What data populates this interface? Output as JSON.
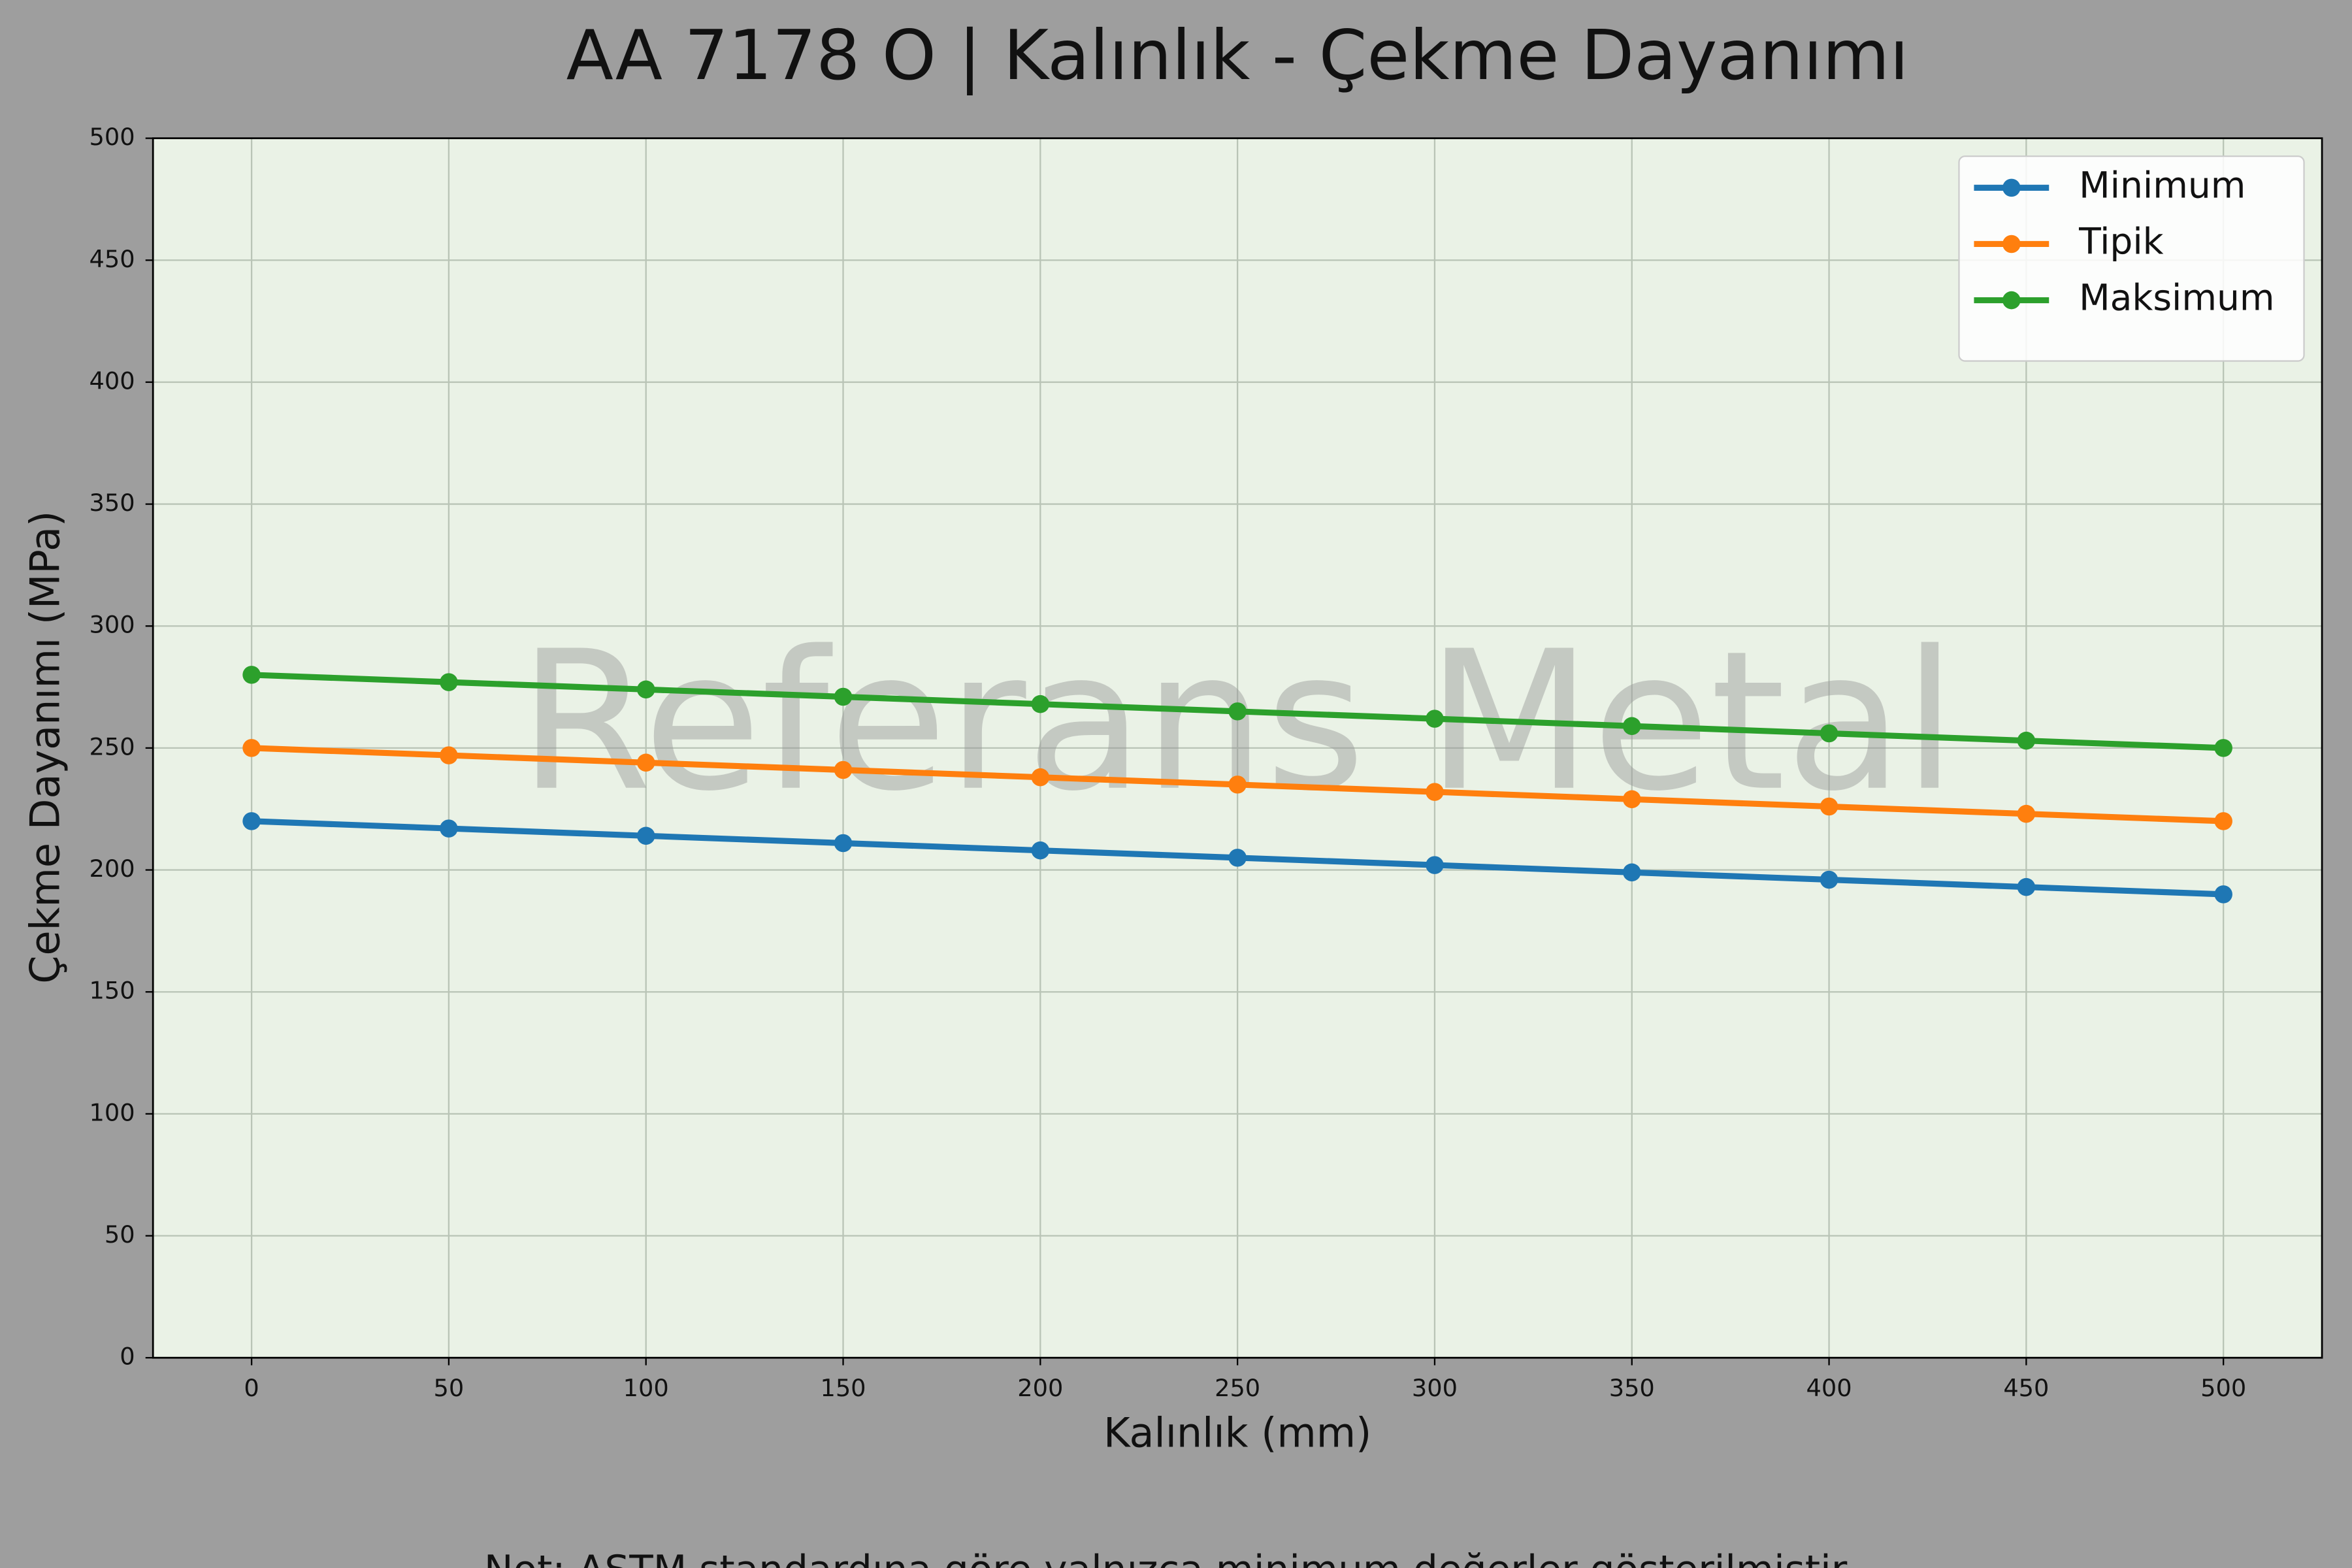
{
  "chart_data": {
    "type": "line",
    "title": "AA 7178 O | Kalınlık - Çekme Dayanımı",
    "xlabel": "Kalınlık (mm)",
    "ylabel": "Çekme Dayanımı (MPa)",
    "watermark": "Referans Metal",
    "note": "Not: ASTM standardına göre yalnızca minimum değerler gösterilmiştir.",
    "x": [
      0,
      50,
      100,
      150,
      200,
      250,
      300,
      350,
      400,
      450,
      500
    ],
    "series": [
      {
        "name": "Minimum",
        "color": "#1f77b4",
        "values": [
          220,
          217,
          214,
          211,
          208,
          205,
          202,
          199,
          196,
          193,
          190
        ]
      },
      {
        "name": "Tipik",
        "color": "#ff7f0e",
        "values": [
          250,
          247,
          244,
          241,
          238,
          235,
          232,
          229,
          226,
          223,
          220
        ]
      },
      {
        "name": "Maksimum",
        "color": "#2ca02c",
        "values": [
          280,
          277,
          274,
          271,
          268,
          265,
          262,
          259,
          256,
          253,
          250
        ]
      }
    ],
    "xlim": [
      -25,
      525
    ],
    "ylim": [
      0,
      500
    ],
    "xticks": [
      0,
      50,
      100,
      150,
      200,
      250,
      300,
      350,
      400,
      450,
      500
    ],
    "yticks": [
      0,
      50,
      100,
      150,
      200,
      250,
      300,
      350,
      400,
      450,
      500
    ],
    "grid": true,
    "legend": "upper right"
  }
}
